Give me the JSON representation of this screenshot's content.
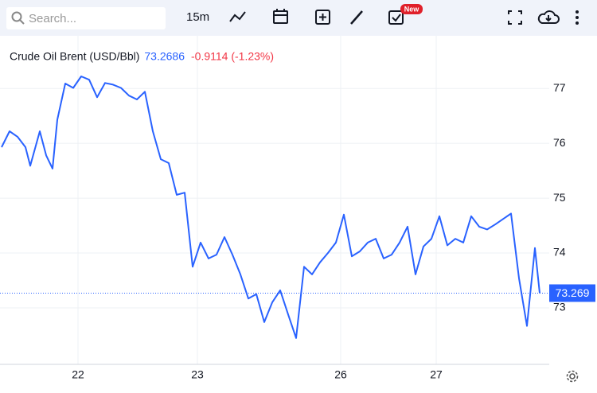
{
  "toolbar": {
    "search_placeholder": "Search...",
    "interval": "15m",
    "badge": "New"
  },
  "chart_data": {
    "type": "line",
    "title": "Crude Oil Brent (USD/Bbl)",
    "change": "-0.9114 (-1.23%)",
    "color": "#2962ff",
    "x": [
      0,
      1,
      2,
      3,
      3.6,
      4.8,
      5.6,
      6.4,
      7,
      8,
      9,
      10,
      11,
      12,
      13,
      14,
      15,
      16,
      17,
      18,
      19,
      20,
      21,
      22,
      23,
      24,
      25,
      26,
      27,
      28,
      29,
      30,
      31,
      32,
      33,
      34,
      35,
      36,
      37,
      38,
      39,
      40,
      41,
      42,
      43,
      44,
      45,
      46,
      47,
      48,
      49,
      50,
      51,
      52,
      53,
      54,
      55,
      56,
      57,
      58,
      59,
      60,
      61,
      62,
      63,
      64,
      65,
      66,
      67,
      67.6
    ],
    "values": [
      75.93,
      76.22,
      76.12,
      75.93,
      75.59,
      76.22,
      75.78,
      75.54,
      76.43,
      77.09,
      77.01,
      77.22,
      77.16,
      76.84,
      77.1,
      77.07,
      77.01,
      76.87,
      76.8,
      76.94,
      76.22,
      75.71,
      75.64,
      75.06,
      75.1,
      73.75,
      74.19,
      73.9,
      73.97,
      74.29,
      73.97,
      73.61,
      73.17,
      73.25,
      72.74,
      73.1,
      73.32,
      72.88,
      72.45,
      73.75,
      73.61,
      73.83,
      74.0,
      74.19,
      74.7,
      73.94,
      74.03,
      74.19,
      74.26,
      73.9,
      73.97,
      74.19,
      74.48,
      73.61,
      74.12,
      74.26,
      74.67,
      74.14,
      74.26,
      74.19,
      74.67,
      74.48,
      74.43,
      74.52,
      74.62,
      74.72,
      73.54,
      72.67,
      74.09,
      73.2686
    ],
    "xlim": [
      -0.2,
      68.8
    ],
    "xticks": [
      {
        "value": 9.6,
        "label": "22"
      },
      {
        "value": 24.6,
        "label": "23"
      },
      {
        "value": 42.6,
        "label": "26"
      },
      {
        "value": 54.6,
        "label": "27"
      }
    ],
    "ylim": [
      71.97,
      77.96
    ],
    "yticks": [
      73,
      74,
      75,
      76,
      77
    ],
    "grid": true,
    "price_line": {
      "value": 73.2686,
      "label": "73.269"
    }
  }
}
